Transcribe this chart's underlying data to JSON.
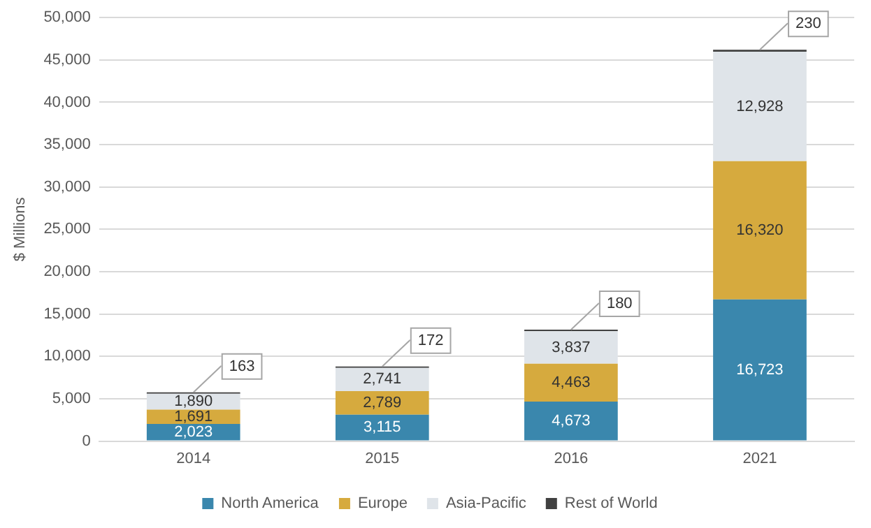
{
  "chart_data": {
    "type": "bar",
    "stacked": true,
    "ylabel": "$ Millions",
    "categories": [
      "2014",
      "2015",
      "2016",
      "2021"
    ],
    "series": [
      {
        "name": "North America",
        "color": "#3a87ad",
        "values": [
          2023,
          3115,
          4673,
          16723
        ],
        "value_labels": [
          "2,023",
          "3,115",
          "4,673",
          "16,723"
        ]
      },
      {
        "name": "Europe",
        "color": "#d6aa3e",
        "values": [
          1691,
          2789,
          4463,
          16320
        ],
        "value_labels": [
          "1,691",
          "2,789",
          "4,463",
          "16,320"
        ]
      },
      {
        "name": "Asia-Pacific",
        "color": "#dfe4e9",
        "values": [
          1890,
          2741,
          3837,
          12928
        ],
        "value_labels": [
          "1,890",
          "2,741",
          "3,837",
          "12,928"
        ]
      },
      {
        "name": "Rest of World",
        "color": "#404040",
        "values": [
          163,
          172,
          180,
          230
        ],
        "value_labels": [
          "163",
          "172",
          "180",
          "230"
        ]
      }
    ],
    "ylim": [
      0,
      50000
    ],
    "yticks": [
      {
        "value": 0,
        "label": "0"
      },
      {
        "value": 5000,
        "label": "5,000"
      },
      {
        "value": 10000,
        "label": "10,000"
      },
      {
        "value": 15000,
        "label": "15,000"
      },
      {
        "value": 20000,
        "label": "20,000"
      },
      {
        "value": 25000,
        "label": "25,000"
      },
      {
        "value": 30000,
        "label": "30,000"
      },
      {
        "value": 35000,
        "label": "35,000"
      },
      {
        "value": 40000,
        "label": "40,000"
      },
      {
        "value": 45000,
        "label": "45,000"
      },
      {
        "value": 50000,
        "label": "50,000"
      }
    ],
    "grid": "y",
    "legend": "bottom"
  }
}
